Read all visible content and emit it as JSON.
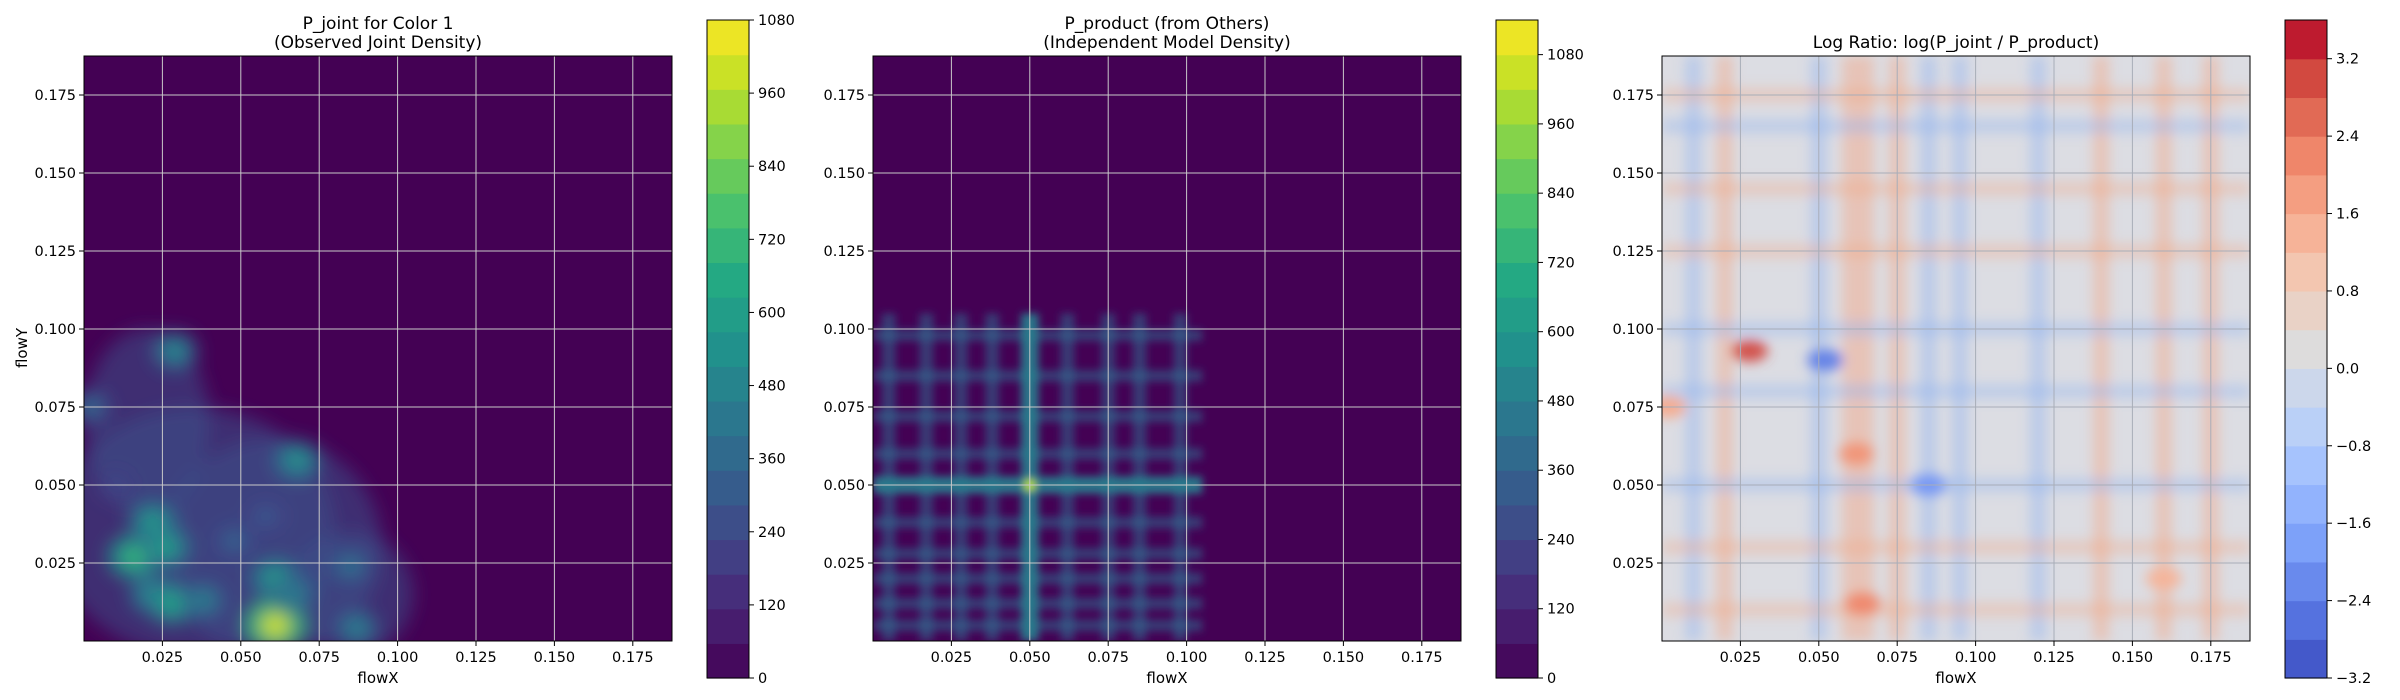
{
  "chart_data": [
    {
      "type": "heatmap",
      "title": "P_joint for Color 1",
      "subtitle": "(Observed Joint Density)",
      "xlabel": "flowX",
      "ylabel": "flowY",
      "xlim": [
        0.0,
        0.1875
      ],
      "ylim": [
        0.0,
        0.1875
      ],
      "xticks": [
        "0.025",
        "0.050",
        "0.075",
        "0.100",
        "0.125",
        "0.150",
        "0.175"
      ],
      "yticks": [
        "0.025",
        "0.050",
        "0.075",
        "0.100",
        "0.125",
        "0.150",
        "0.175"
      ],
      "grid": true,
      "colormap": "viridis",
      "colorbar": {
        "range": [
          0,
          1080
        ],
        "ticks": [
          "0",
          "120",
          "240",
          "360",
          "480",
          "600",
          "720",
          "840",
          "960",
          "1080"
        ]
      },
      "hotspots": [
        {
          "x": 0.029,
          "y": 0.093,
          "value": 520
        },
        {
          "x": 0.002,
          "y": 0.075,
          "value": 380
        },
        {
          "x": 0.016,
          "y": 0.027,
          "value": 720
        },
        {
          "x": 0.022,
          "y": 0.038,
          "value": 600
        },
        {
          "x": 0.026,
          "y": 0.03,
          "value": 620
        },
        {
          "x": 0.022,
          "y": 0.015,
          "value": 560
        },
        {
          "x": 0.028,
          "y": 0.012,
          "value": 640
        },
        {
          "x": 0.038,
          "y": 0.013,
          "value": 480
        },
        {
          "x": 0.061,
          "y": 0.005,
          "value": 1000
        },
        {
          "x": 0.061,
          "y": 0.02,
          "value": 600
        },
        {
          "x": 0.068,
          "y": 0.058,
          "value": 560
        },
        {
          "x": 0.067,
          "y": 0.015,
          "value": 480
        },
        {
          "x": 0.087,
          "y": 0.004,
          "value": 480
        },
        {
          "x": 0.085,
          "y": 0.024,
          "value": 420
        },
        {
          "x": 0.048,
          "y": 0.032,
          "value": 360
        },
        {
          "x": 0.058,
          "y": 0.04,
          "value": 320
        },
        {
          "x": 0.01,
          "y": 0.05,
          "value": 260
        }
      ]
    },
    {
      "type": "heatmap",
      "title": "P_product (from Others)",
      "subtitle": "(Independent Model Density)",
      "xlabel": "flowX",
      "ylabel": "",
      "xlim": [
        0.0,
        0.1875
      ],
      "ylim": [
        0.0,
        0.1875
      ],
      "xticks": [
        "0.025",
        "0.050",
        "0.075",
        "0.100",
        "0.125",
        "0.150",
        "0.175"
      ],
      "yticks": [
        "0.025",
        "0.050",
        "0.075",
        "0.100",
        "0.125",
        "0.150",
        "0.175"
      ],
      "grid": true,
      "colormap": "viridis",
      "colorbar": {
        "range": [
          0,
          1140
        ],
        "ticks": [
          "0",
          "120",
          "240",
          "360",
          "480",
          "600",
          "720",
          "840",
          "960",
          "1080"
        ]
      },
      "x_bands": [
        0.005,
        0.017,
        0.028,
        0.038,
        0.05,
        0.062,
        0.075,
        0.085,
        0.098
      ],
      "y_bands": [
        0.005,
        0.012,
        0.02,
        0.028,
        0.038,
        0.05,
        0.06,
        0.072,
        0.085,
        0.098
      ],
      "peak": {
        "x": 0.05,
        "y": 0.05,
        "value": 1080
      }
    },
    {
      "type": "heatmap",
      "title": "Log Ratio: log(P_joint / P_product)",
      "xlabel": "flowX",
      "ylabel": "",
      "xlim": [
        0.0,
        0.1875
      ],
      "ylim": [
        0.0,
        0.1875
      ],
      "xticks": [
        "0.025",
        "0.050",
        "0.075",
        "0.100",
        "0.125",
        "0.150",
        "0.175"
      ],
      "yticks": [
        "0.025",
        "0.050",
        "0.075",
        "0.100",
        "0.125",
        "0.150",
        "0.175"
      ],
      "grid": true,
      "colormap": "coolwarm",
      "colorbar": {
        "range": [
          -3.2,
          3.6
        ],
        "ticks": [
          "−3.2",
          "−2.4",
          "−1.6",
          "−0.8",
          "0.0",
          "0.8",
          "1.6",
          "2.4",
          "3.2"
        ]
      },
      "hotspots": [
        {
          "x": 0.028,
          "y": 0.093,
          "value": 3.0
        },
        {
          "x": 0.062,
          "y": 0.06,
          "value": 2.0
        },
        {
          "x": 0.064,
          "y": 0.012,
          "value": 2.2
        },
        {
          "x": 0.052,
          "y": 0.09,
          "value": -2.4
        },
        {
          "x": 0.085,
          "y": 0.05,
          "value": -2.0
        },
        {
          "x": 0.002,
          "y": 0.075,
          "value": 1.6
        },
        {
          "x": 0.16,
          "y": 0.02,
          "value": 1.4
        }
      ]
    }
  ]
}
